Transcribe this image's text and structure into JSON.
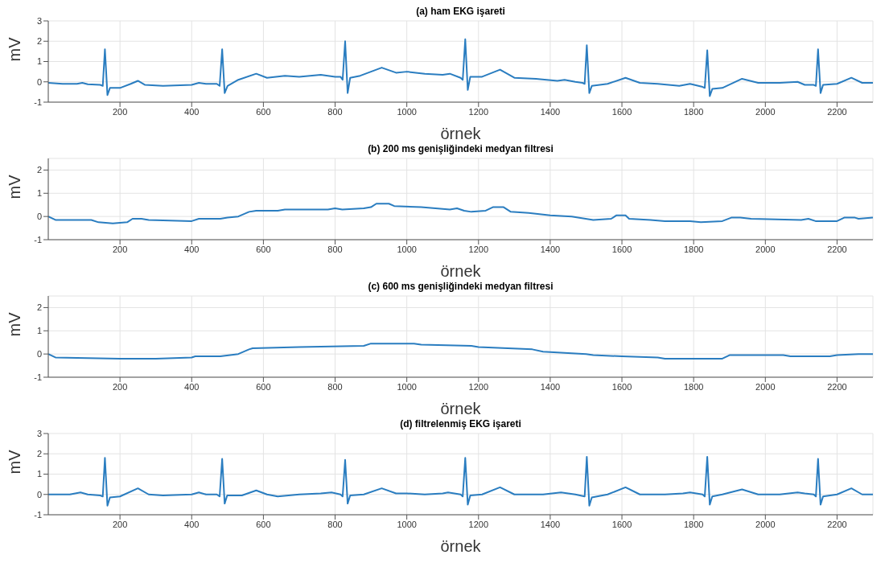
{
  "chart_data": [
    {
      "type": "line",
      "title": "(a) ham EKG işareti",
      "xlabel": "örnek",
      "ylabel": "mV",
      "xlim": [
        0,
        2300
      ],
      "xticks": [
        200,
        400,
        600,
        800,
        1000,
        1200,
        1400,
        1600,
        1800,
        2000,
        2200
      ],
      "ylim": [
        -1,
        3
      ],
      "yticks": [
        -1,
        0,
        1,
        2,
        3
      ],
      "grid": true,
      "x": [
        0,
        40,
        80,
        95,
        110,
        145,
        152,
        158,
        165,
        172,
        200,
        230,
        250,
        270,
        320,
        400,
        420,
        440,
        470,
        478,
        485,
        492,
        500,
        530,
        580,
        610,
        660,
        700,
        760,
        800,
        815,
        821,
        828,
        835,
        842,
        870,
        930,
        970,
        1000,
        1050,
        1100,
        1120,
        1150,
        1156,
        1163,
        1170,
        1177,
        1210,
        1260,
        1300,
        1360,
        1420,
        1440,
        1470,
        1490,
        1496,
        1502,
        1509,
        1516,
        1560,
        1610,
        1650,
        1700,
        1760,
        1790,
        1825,
        1831,
        1838,
        1845,
        1852,
        1880,
        1935,
        1980,
        2040,
        2090,
        2110,
        2135,
        2141,
        2147,
        2154,
        2161,
        2200,
        2240,
        2270,
        2300
      ],
      "series": [
        {
          "color": "#2a7dc0",
          "values": [
            -0.05,
            -0.1,
            -0.1,
            -0.05,
            -0.12,
            -0.15,
            -0.2,
            1.6,
            -0.65,
            -0.3,
            -0.3,
            -0.1,
            0.05,
            -0.15,
            -0.2,
            -0.15,
            -0.05,
            -0.1,
            -0.1,
            -0.2,
            1.6,
            -0.55,
            -0.2,
            0.1,
            0.4,
            0.2,
            0.3,
            0.25,
            0.35,
            0.25,
            0.25,
            0.1,
            2.0,
            -0.55,
            0.2,
            0.3,
            0.7,
            0.45,
            0.5,
            0.4,
            0.35,
            0.4,
            0.2,
            0.1,
            2.1,
            -0.4,
            0.25,
            0.25,
            0.6,
            0.2,
            0.15,
            0.05,
            0.1,
            0,
            -0.05,
            -0.1,
            1.8,
            -0.55,
            -0.2,
            -0.1,
            0.2,
            -0.05,
            -0.1,
            -0.2,
            -0.1,
            -0.25,
            -0.3,
            1.55,
            -0.7,
            -0.35,
            -0.3,
            0.15,
            -0.05,
            -0.05,
            0,
            -0.15,
            -0.15,
            -0.2,
            1.6,
            -0.55,
            -0.15,
            -0.1,
            0.2,
            -0.05,
            -0.05
          ]
        }
      ]
    },
    {
      "type": "line",
      "title": "(b) 200 ms genişliğindeki medyan filtresi",
      "xlabel": "örnek",
      "ylabel": "mV",
      "xlim": [
        0,
        2300
      ],
      "xticks": [
        200,
        400,
        600,
        800,
        1000,
        1200,
        1400,
        1600,
        1800,
        2000,
        2200
      ],
      "ylim": [
        -1,
        2.5
      ],
      "yticks": [
        -1,
        0,
        1,
        2
      ],
      "grid": true,
      "x": [
        0,
        20,
        120,
        140,
        180,
        220,
        235,
        260,
        280,
        400,
        420,
        480,
        500,
        530,
        560,
        580,
        640,
        660,
        780,
        800,
        820,
        880,
        900,
        915,
        950,
        965,
        1040,
        1120,
        1140,
        1160,
        1180,
        1220,
        1240,
        1270,
        1290,
        1340,
        1400,
        1460,
        1520,
        1570,
        1585,
        1610,
        1620,
        1680,
        1720,
        1790,
        1820,
        1880,
        1905,
        1930,
        1960,
        2100,
        2120,
        2140,
        2200,
        2220,
        2250,
        2260,
        2300
      ],
      "series": [
        {
          "color": "#2a7dc0",
          "values": [
            0,
            -0.15,
            -0.15,
            -0.25,
            -0.3,
            -0.25,
            -0.1,
            -0.1,
            -0.15,
            -0.2,
            -0.1,
            -0.1,
            -0.05,
            0,
            0.2,
            0.25,
            0.25,
            0.3,
            0.3,
            0.35,
            0.3,
            0.35,
            0.4,
            0.55,
            0.55,
            0.45,
            0.4,
            0.3,
            0.35,
            0.25,
            0.2,
            0.25,
            0.4,
            0.4,
            0.2,
            0.15,
            0.05,
            0,
            -0.15,
            -0.1,
            0.05,
            0.05,
            -0.1,
            -0.15,
            -0.2,
            -0.2,
            -0.25,
            -0.2,
            -0.05,
            -0.05,
            -0.1,
            -0.15,
            -0.1,
            -0.2,
            -0.2,
            -0.05,
            -0.05,
            -0.1,
            -0.05
          ]
        }
      ]
    },
    {
      "type": "line",
      "title": "(c) 600 ms genişliğindeki medyan filtresi",
      "xlabel": "örnek",
      "ylabel": "mV",
      "xlim": [
        0,
        2300
      ],
      "xticks": [
        200,
        400,
        600,
        800,
        1000,
        1200,
        1400,
        1600,
        1800,
        2000,
        2200
      ],
      "ylim": [
        -1,
        2.5
      ],
      "yticks": [
        -1,
        0,
        1,
        2
      ],
      "grid": true,
      "x": [
        0,
        20,
        200,
        300,
        400,
        410,
        480,
        530,
        560,
        570,
        700,
        880,
        900,
        1020,
        1040,
        1180,
        1200,
        1350,
        1380,
        1500,
        1520,
        1600,
        1700,
        1720,
        1880,
        1900,
        2050,
        2070,
        2180,
        2200,
        2260,
        2300
      ],
      "series": [
        {
          "color": "#2a7dc0",
          "values": [
            0,
            -0.15,
            -0.2,
            -0.2,
            -0.15,
            -0.1,
            -0.1,
            0,
            0.2,
            0.25,
            0.3,
            0.35,
            0.45,
            0.45,
            0.4,
            0.35,
            0.3,
            0.2,
            0.1,
            0,
            -0.05,
            -0.1,
            -0.15,
            -0.2,
            -0.2,
            -0.05,
            -0.05,
            -0.1,
            -0.1,
            -0.05,
            0,
            0
          ]
        }
      ]
    },
    {
      "type": "line",
      "title": "(d) filtrelenmiş EKG işareti",
      "xlabel": "örnek",
      "ylabel": "mV",
      "xlim": [
        0,
        2300
      ],
      "xticks": [
        200,
        400,
        600,
        800,
        1000,
        1200,
        1400,
        1600,
        1800,
        2000,
        2200
      ],
      "ylim": [
        -1,
        3
      ],
      "yticks": [
        -1,
        0,
        1,
        2,
        3
      ],
      "grid": true,
      "x": [
        0,
        60,
        90,
        110,
        145,
        152,
        158,
        165,
        172,
        200,
        250,
        280,
        320,
        400,
        420,
        440,
        470,
        478,
        485,
        492,
        499,
        540,
        580,
        610,
        640,
        700,
        760,
        790,
        815,
        821,
        828,
        835,
        842,
        880,
        930,
        970,
        1000,
        1050,
        1100,
        1115,
        1150,
        1156,
        1163,
        1170,
        1177,
        1210,
        1260,
        1300,
        1380,
        1430,
        1470,
        1496,
        1502,
        1509,
        1516,
        1560,
        1610,
        1650,
        1720,
        1770,
        1790,
        1825,
        1831,
        1838,
        1845,
        1852,
        1880,
        1935,
        1980,
        2040,
        2090,
        2110,
        2135,
        2141,
        2147,
        2154,
        2161,
        2200,
        2240,
        2270,
        2300
      ],
      "series": [
        {
          "color": "#2a7dc0",
          "values": [
            0,
            0,
            0.1,
            0,
            -0.05,
            -0.1,
            1.8,
            -0.55,
            -0.15,
            -0.1,
            0.3,
            0,
            -0.05,
            0,
            0.1,
            0,
            0,
            -0.1,
            1.75,
            -0.45,
            -0.05,
            -0.05,
            0.2,
            0,
            -0.1,
            0,
            0.05,
            0.1,
            0,
            -0.1,
            1.7,
            -0.45,
            -0.05,
            0,
            0.3,
            0.05,
            0.05,
            0,
            0.05,
            0.1,
            0,
            -0.1,
            1.8,
            -0.5,
            -0.05,
            0,
            0.35,
            0,
            0,
            0.1,
            0,
            -0.1,
            1.85,
            -0.55,
            -0.15,
            0,
            0.35,
            0,
            0,
            0.05,
            0.1,
            0,
            -0.1,
            1.85,
            -0.5,
            -0.1,
            0,
            0.25,
            0,
            0,
            0.1,
            0.05,
            0,
            -0.1,
            1.75,
            -0.5,
            -0.1,
            0,
            0.3,
            0,
            0
          ]
        }
      ]
    }
  ]
}
